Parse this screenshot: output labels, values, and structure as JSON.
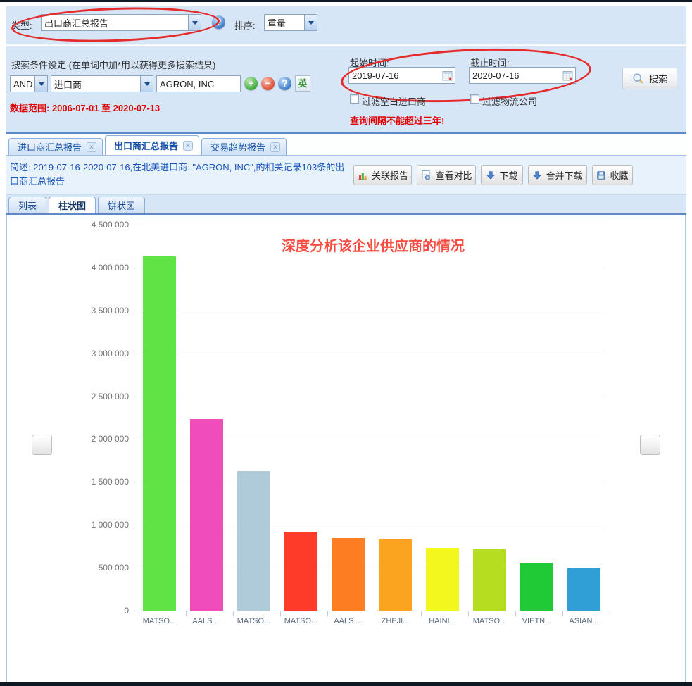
{
  "toolbar": {
    "type_label": "类型:",
    "type_value": "出口商汇总报告",
    "sort_label": "排序:",
    "sort_value": "重量"
  },
  "search": {
    "title": "搜索条件设定  (在单词中加*用以获得更多搜索结果)",
    "bool_operator": "AND",
    "field_selector": "进口商",
    "keyword_value": "AGRON, INC",
    "english_button": "英",
    "data_range": "数据范围: 2006-07-01 至 2020-07-13",
    "start_time_label": "起始时间:",
    "start_time_value": "2019-07-16",
    "end_time_label": "截止时间:",
    "end_time_value": "2020-07-16",
    "filter_blank_importer": "过滤空白进口商",
    "filter_logistics": "过滤物流公司",
    "warning": "查询间隔不能超过三年!",
    "search_button": "搜索"
  },
  "report_tabs": [
    {
      "label": "进口商汇总报告",
      "active": false
    },
    {
      "label": "出口商汇总报告",
      "active": true
    },
    {
      "label": "交易趋势报告",
      "active": false
    }
  ],
  "summary": {
    "text": "简述: 2019-07-16-2020-07-16,在北美进口商: \"AGRON, INC\",的相关记录103条的出口商汇总报告",
    "buttons": [
      "关联报告",
      "查看对比",
      "下载",
      "合并下载",
      "收藏"
    ]
  },
  "view_tabs": [
    {
      "label": "列表",
      "active": false
    },
    {
      "label": "柱状图",
      "active": true
    },
    {
      "label": "饼状图",
      "active": false
    }
  ],
  "accent": {
    "highlight_ellipse_color": "#e62b2b"
  },
  "chart_data": {
    "type": "bar",
    "annotation": "深度分析该企业供应商的情况",
    "annotation_color": "#fa4b42",
    "categories": [
      "MATSO...",
      "AALS ...",
      "MATSO...",
      "MATSO...",
      "AALS ...",
      "ZHEJI...",
      "HAINI...",
      "MATSO...",
      "VIETN...",
      "ASIAN..."
    ],
    "values": [
      4130000,
      2230000,
      1630000,
      920000,
      845000,
      840000,
      730000,
      725000,
      560000,
      490000
    ],
    "bar_colors": [
      "#5fe345",
      "#f14cbc",
      "#afcad9",
      "#fe3b28",
      "#fd7d22",
      "#fba41f",
      "#f3f71e",
      "#b7dd21",
      "#1fca36",
      "#2f9fd6"
    ],
    "xlabel": "",
    "ylabel": "",
    "ylim": [
      0,
      4500000
    ],
    "ytick_step": 500000,
    "ytick_labels": [
      "0",
      "500 000",
      "1 000 000",
      "1 500 000",
      "2 000 000",
      "2 500 000",
      "3 000 000",
      "3 500 000",
      "4 000 000",
      "4 500 000"
    ],
    "grid": true,
    "legend": false
  }
}
